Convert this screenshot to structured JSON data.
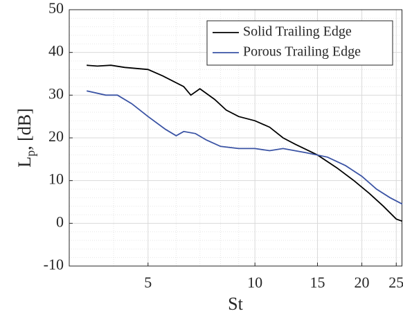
{
  "chart_data": {
    "type": "line",
    "x_label": "St",
    "y_label": {
      "base": "L",
      "sub": "p",
      "rest": ", [dB]"
    },
    "xlog": true,
    "xlim": [
      3,
      26
    ],
    "xticks": [
      5,
      10,
      15,
      20,
      25
    ],
    "xminorticks": [
      3,
      4,
      6,
      7,
      8,
      9
    ],
    "ylim": [
      -10,
      50
    ],
    "yticks": [
      -10,
      0,
      10,
      20,
      30,
      40,
      50
    ],
    "yminorticks": [
      -8,
      -6,
      -4,
      -2,
      2,
      4,
      6,
      8,
      12,
      14,
      16,
      18,
      22,
      24,
      26,
      28,
      32,
      34,
      36,
      38,
      42,
      44,
      46,
      48
    ],
    "grid": true,
    "legend": "upper right",
    "series": [
      {
        "name": "Solid Trailing Edge",
        "color": "#000000",
        "x": [
          3.36,
          3.6,
          3.93,
          4.3,
          5,
          5.5,
          6.3,
          6.6,
          7,
          7.7,
          8.3,
          9,
          10,
          11,
          12,
          13,
          15,
          17,
          19,
          21,
          23,
          25,
          26
        ],
        "values": [
          37,
          36.8,
          37,
          36.5,
          36,
          34.5,
          32,
          30,
          31.5,
          29,
          26.5,
          25,
          24,
          22.5,
          20,
          18.5,
          16,
          13,
          10,
          7,
          4,
          1,
          0.5
        ]
      },
      {
        "name": "Porous Trailing Edge",
        "color": "#3a53a4",
        "x": [
          3.36,
          3.8,
          4.1,
          4.5,
          5,
          5.6,
          6,
          6.3,
          6.8,
          7.3,
          8,
          9,
          10,
          11,
          12,
          14,
          16,
          18,
          20,
          22,
          24,
          26
        ],
        "values": [
          31,
          30,
          30,
          28,
          25,
          22,
          20.5,
          21.5,
          21,
          19.5,
          18,
          17.5,
          17.5,
          17,
          17.5,
          16.5,
          15.5,
          13.5,
          11,
          8,
          6,
          4.5
        ]
      }
    ]
  }
}
